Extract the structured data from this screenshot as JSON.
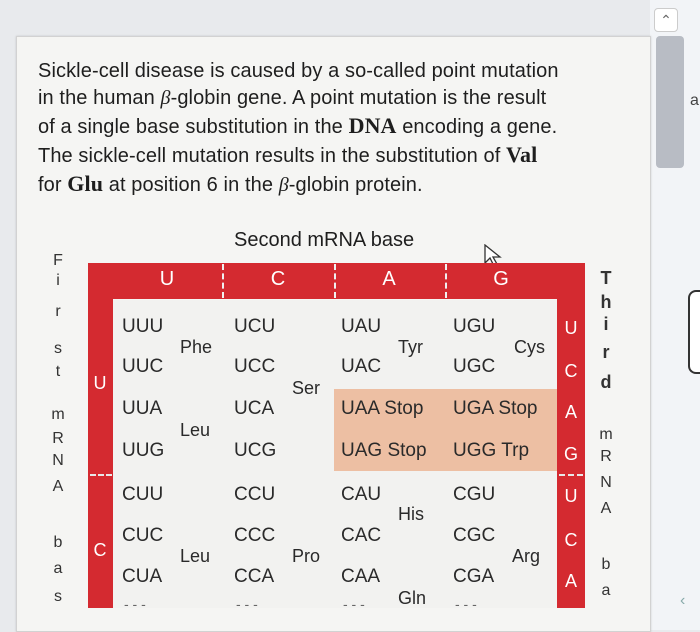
{
  "problem": {
    "l1": "Sickle-cell disease is caused by a so-called point mutation",
    "l2a": "in the human ",
    "beta": "β",
    "l2b": "-globin gene. A point mutation is the result",
    "l3a": "of a single base substitution in the ",
    "dna": "DNA",
    "l3b": " encoding a gene.",
    "l4a": "The sickle-cell mutation results in the substitution of ",
    "val": "Val",
    "l5a": "for ",
    "glu": "Glu",
    "l5b": " at position 6 in the ",
    "l5c": "-globin protein."
  },
  "table": {
    "second_title": "Second mRNA base",
    "first_label": [
      "F",
      "i",
      "r",
      "s",
      "t",
      "m",
      "R",
      "N",
      "A",
      "b",
      "a",
      "s"
    ],
    "third_label": [
      "T",
      "h",
      "i",
      "r",
      "d",
      "m",
      "R",
      "N",
      "A",
      "b",
      "a"
    ],
    "col_headers": [
      "U",
      "C",
      "A",
      "G"
    ],
    "row_first": [
      "U",
      "C"
    ],
    "row_third": [
      "U",
      "C",
      "A",
      "G",
      "U",
      "C",
      "A"
    ],
    "codons": {
      "U": {
        "U": [
          "UUU",
          "UUC",
          "UUA",
          "UUG"
        ],
        "C": [
          "UCU",
          "UCC",
          "UCA",
          "UCG"
        ],
        "A": [
          "UAU",
          "UAC",
          "UAA Stop",
          "UAG Stop"
        ],
        "G": [
          "UGU",
          "UGC",
          "UGA Stop",
          "UGG Trp"
        ]
      },
      "C": {
        "U": [
          "CUU",
          "CUC",
          "CUA"
        ],
        "C": [
          "CCU",
          "CCC",
          "CCA"
        ],
        "A": [
          "CAU",
          "CAC",
          "CAA"
        ],
        "G": [
          "CGU",
          "CGC",
          "CGA"
        ]
      }
    },
    "aa": {
      "phe": "Phe",
      "leu1": "Leu",
      "ser": "Ser",
      "tyr": "Tyr",
      "cys": "Cys",
      "leu2": "Leu",
      "pro": "Pro",
      "his": "His",
      "gln": "Gln",
      "arg": "Arg"
    },
    "ellipsis": [
      "- - -",
      "- - -",
      "- - -",
      "- - -"
    ]
  },
  "colors": {
    "accent_red": "#d42a30",
    "stop_highlight": "#ecb99a"
  },
  "icons": {
    "cursor": "mouse-pointer-icon",
    "scroll_up": "chevron-up-icon"
  }
}
